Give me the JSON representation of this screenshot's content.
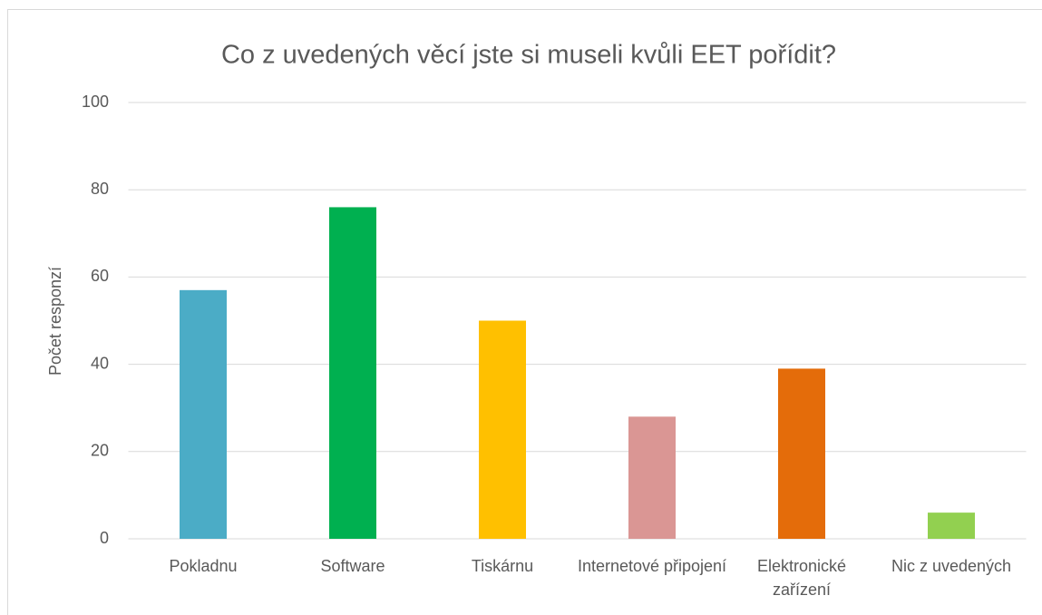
{
  "chart_data": {
    "type": "bar",
    "title": "Co z uvedených věcí jste si museli kvůli EET pořídit?",
    "y_label": "Počet responzí",
    "categories": [
      "Pokladnu",
      "Software",
      "Tiskárnu",
      "Internetové připojení",
      "Elektronické zařízení",
      "Nic z uvedených"
    ],
    "values": [
      57,
      76,
      50,
      28,
      39,
      6
    ],
    "colors": [
      "#4bacc6",
      "#00b050",
      "#ffc000",
      "#da9694",
      "#e46c0a",
      "#92d050"
    ],
    "ylim": [
      0,
      100
    ],
    "yticks": [
      0,
      20,
      40,
      60,
      80,
      100
    ],
    "grid": true
  }
}
